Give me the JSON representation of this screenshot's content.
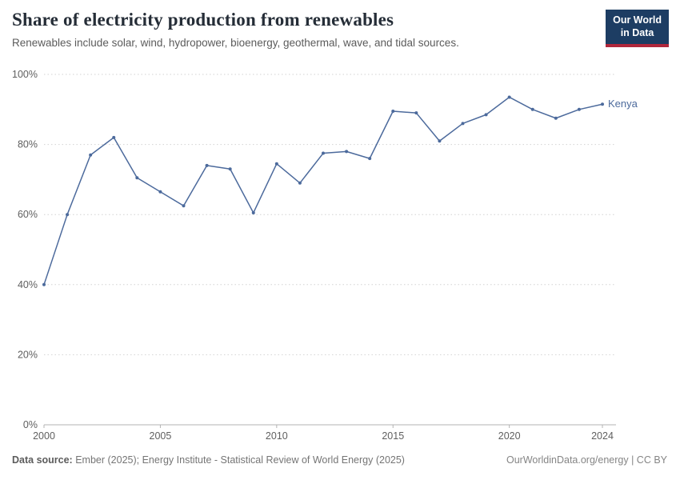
{
  "header": {
    "title": "Share of electricity production from renewables",
    "subtitle": "Renewables include solar, wind, hydropower, bioenergy, geothermal, wave, and tidal sources.",
    "logo": {
      "line1": "Our World",
      "line2": "in Data",
      "bg_color": "#1d3d63",
      "accent_color": "#b0273c"
    }
  },
  "chart_data": {
    "type": "line",
    "title": "Share of electricity production from renewables",
    "xlabel": "",
    "ylabel": "",
    "ylim": [
      0,
      100
    ],
    "grid": "dotted-horizontal",
    "legend_position": "end-of-line",
    "x_ticks": [
      2000,
      2005,
      2010,
      2015,
      2020,
      2024
    ],
    "y_ticks": [
      {
        "value": 0,
        "label": "0%"
      },
      {
        "value": 20,
        "label": "20%"
      },
      {
        "value": 40,
        "label": "40%"
      },
      {
        "value": 60,
        "label": "60%"
      },
      {
        "value": 80,
        "label": "80%"
      },
      {
        "value": 100,
        "label": "100%"
      }
    ],
    "series": [
      {
        "name": "Kenya",
        "color": "#4c6a9c",
        "x": [
          2000,
          2001,
          2002,
          2003,
          2004,
          2005,
          2006,
          2007,
          2008,
          2009,
          2010,
          2011,
          2012,
          2013,
          2014,
          2015,
          2016,
          2017,
          2018,
          2019,
          2020,
          2021,
          2022,
          2023,
          2024
        ],
        "values": [
          40,
          60,
          77,
          82,
          70.5,
          66.5,
          62.5,
          74,
          73,
          60.5,
          74.5,
          69,
          77.5,
          78,
          76,
          89.5,
          89,
          81,
          86,
          88.5,
          93.5,
          90,
          87.5,
          90,
          91.5
        ]
      }
    ]
  },
  "footer": {
    "source_label": "Data source:",
    "source_text": " Ember (2025); Energy Institute - Statistical Review of World Energy (2025)",
    "rights": "OurWorldinData.org/energy | CC BY"
  }
}
